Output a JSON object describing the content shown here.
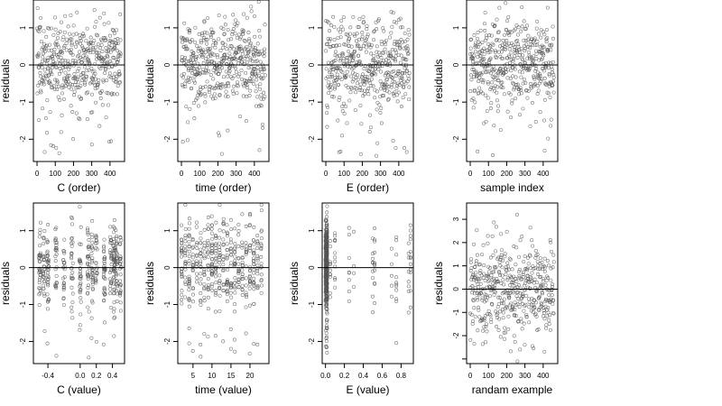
{
  "figure": {
    "ylabel": "residuals",
    "colors": {
      "point": "#555555",
      "frame": "#000000",
      "zero_line": "#000000"
    }
  },
  "chart_data": [
    {
      "type": "scatter",
      "xlabel": "C (order)",
      "ylabel": "residuals",
      "xlim": [
        -20,
        480
      ],
      "ylim": [
        -2.6,
        1.75
      ],
      "xticks": [
        0,
        100,
        200,
        300,
        400
      ],
      "xtick_labels": [
        "0",
        "100",
        "200",
        "300",
        "400"
      ],
      "yticks": [
        -2,
        -1,
        0,
        1
      ],
      "ytick_labels": [
        "-2",
        "-1",
        "0",
        "1"
      ],
      "reference_line_y": 0,
      "grid": false,
      "n_points": 460,
      "pattern": "order",
      "seed": 101
    },
    {
      "type": "scatter",
      "xlabel": "time (order)",
      "ylabel": "residuals",
      "xlim": [
        -20,
        480
      ],
      "ylim": [
        -2.6,
        1.75
      ],
      "xticks": [
        0,
        100,
        200,
        300,
        400
      ],
      "xtick_labels": [
        "0",
        "100",
        "200",
        "300",
        "400"
      ],
      "yticks": [
        -2,
        -1,
        0,
        1
      ],
      "ytick_labels": [
        "-2",
        "-1",
        "0",
        "1"
      ],
      "reference_line_y": 0,
      "grid": false,
      "n_points": 460,
      "pattern": "order",
      "seed": 202
    },
    {
      "type": "scatter",
      "xlabel": "E (order)",
      "ylabel": "residuals",
      "xlim": [
        -20,
        480
      ],
      "ylim": [
        -2.6,
        1.75
      ],
      "xticks": [
        0,
        100,
        200,
        300,
        400
      ],
      "xtick_labels": [
        "0",
        "100",
        "200",
        "300",
        "400"
      ],
      "yticks": [
        -2,
        -1,
        0,
        1
      ],
      "ytick_labels": [
        "-2",
        "-1",
        "0",
        "1"
      ],
      "reference_line_y": 0,
      "grid": false,
      "n_points": 460,
      "pattern": "order",
      "seed": 303
    },
    {
      "type": "scatter",
      "xlabel": "sample index",
      "ylabel": "residuals",
      "xlim": [
        -20,
        480
      ],
      "ylim": [
        -2.6,
        1.75
      ],
      "xticks": [
        0,
        100,
        200,
        300,
        400
      ],
      "xtick_labels": [
        "0",
        "100",
        "200",
        "300",
        "400"
      ],
      "yticks": [
        -2,
        -1,
        0,
        1
      ],
      "ytick_labels": [
        "-2",
        "-1",
        "0",
        "1"
      ],
      "reference_line_y": 0,
      "grid": false,
      "n_points": 460,
      "pattern": "order",
      "seed": 404
    },
    {
      "type": "scatter",
      "xlabel": "C (value)",
      "ylabel": "residuals",
      "xlim": [
        -0.58,
        0.55
      ],
      "ylim": [
        -2.6,
        1.75
      ],
      "xticks": [
        -0.4,
        0.0,
        0.2,
        0.4
      ],
      "xtick_labels": [
        "-0.4",
        "0.0",
        "0.2",
        "0.4"
      ],
      "yticks": [
        -2,
        -1,
        0,
        1
      ],
      "ytick_labels": [
        "-2",
        "-1",
        "0",
        "1"
      ],
      "reference_line_y": 0,
      "grid": false,
      "n_points": 460,
      "pattern": "c_value",
      "seed": 505
    },
    {
      "type": "scatter",
      "xlabel": "time (value)",
      "ylabel": "residuals",
      "xlim": [
        1,
        25
      ],
      "ylim": [
        -2.6,
        1.75
      ],
      "xticks": [
        5,
        10,
        15,
        20
      ],
      "xtick_labels": [
        "5",
        "10",
        "15",
        "20"
      ],
      "yticks": [
        -2,
        -1,
        0,
        1
      ],
      "ytick_labels": [
        "-2",
        "-1",
        "0",
        "1"
      ],
      "reference_line_y": 0,
      "grid": false,
      "n_points": 460,
      "pattern": "time_value",
      "seed": 606
    },
    {
      "type": "scatter",
      "xlabel": "E (value)",
      "ylabel": "residuals",
      "xlim": [
        -0.035,
        0.93
      ],
      "ylim": [
        -2.6,
        1.75
      ],
      "xticks": [
        0.0,
        0.2,
        0.4,
        0.6,
        0.8
      ],
      "xtick_labels": [
        "0.0",
        "0.2",
        "0.4",
        "0.6",
        "0.8"
      ],
      "yticks": [
        -2,
        -1,
        0,
        1
      ],
      "ytick_labels": [
        "-2",
        "-1",
        "0",
        "1"
      ],
      "reference_line_y": 0,
      "grid": false,
      "n_points": 460,
      "pattern": "e_value",
      "seed": 707
    },
    {
      "type": "scatter",
      "xlabel": "randam example",
      "ylabel": "residuals",
      "xlim": [
        -20,
        480
      ],
      "ylim": [
        -3.2,
        3.7
      ],
      "xticks": [
        0,
        100,
        200,
        300,
        400
      ],
      "xtick_labels": [
        "0",
        "100",
        "200",
        "300",
        "400"
      ],
      "yticks": [
        -3,
        -2,
        -1,
        0,
        1,
        2,
        3
      ],
      "ytick_labels": [
        "",
        "-2",
        "-1",
        "0",
        "1",
        "2",
        "3"
      ],
      "reference_line_y": 0,
      "grid": false,
      "n_points": 460,
      "pattern": "random",
      "seed": 808
    }
  ]
}
